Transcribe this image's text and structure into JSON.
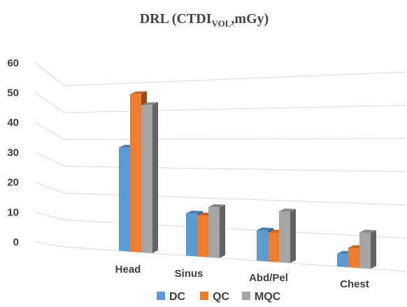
{
  "chart_data": {
    "type": "bar",
    "title": "DRL (CTDI",
    "title_subscript": "VOL",
    "title_suffix": ",mGy)",
    "categories": [
      "Head",
      "Sinus",
      "Abd/Pel",
      "Chest"
    ],
    "series": [
      {
        "name": "DC",
        "color": "#5B9BD5",
        "values": [
          37,
          14.5,
          10,
          4
        ]
      },
      {
        "name": "QC",
        "color": "#ED7D31",
        "values": [
          56,
          14,
          9.5,
          6
        ]
      },
      {
        "name": "MQC",
        "color": "#A5A5A5",
        "values": [
          52,
          17,
          16.5,
          11
        ]
      }
    ],
    "y_ticks": [
      "0",
      "10",
      "20",
      "30",
      "40",
      "50",
      "60"
    ],
    "ylim": [
      0,
      60
    ],
    "grid": true,
    "legend": "bottom",
    "perspective": "3d-clustered"
  }
}
